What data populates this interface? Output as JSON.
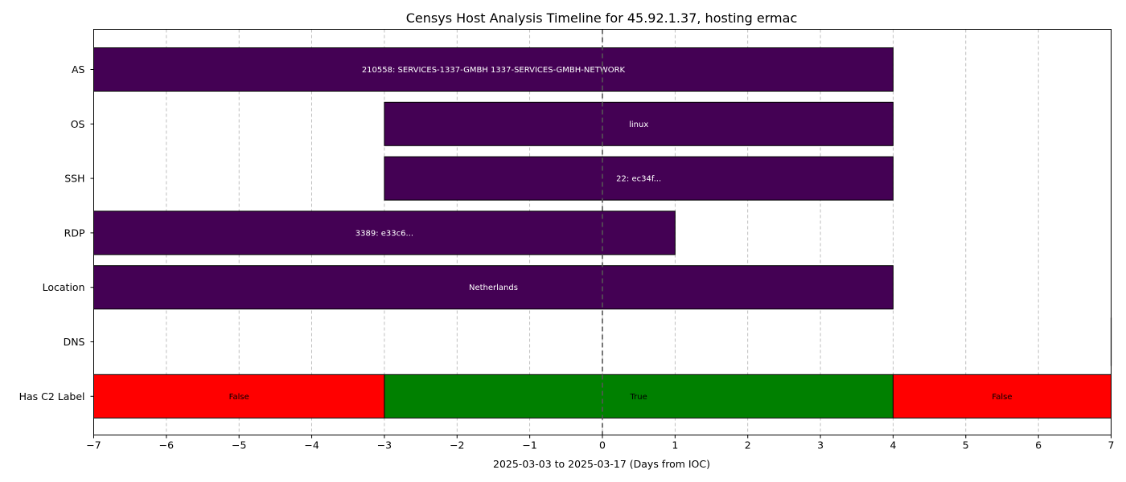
{
  "chart_data": {
    "type": "timeline",
    "title": "Censys Host Analysis Timeline for 45.92.1.37, hosting ermac",
    "xlabel": "2025-03-03 to 2025-03-17 (Days from IOC)",
    "ylabel": "",
    "xlim": [
      -7,
      7
    ],
    "xticks": [
      -7,
      -6,
      -5,
      -4,
      -3,
      -2,
      -1,
      0,
      1,
      2,
      3,
      4,
      5,
      6,
      7
    ],
    "grid": "vertical dashed",
    "reference_line": {
      "x": 0,
      "style": "dashed"
    },
    "categories": [
      "AS",
      "OS",
      "SSH",
      "RDP",
      "Location",
      "DNS",
      "Has C2 Label"
    ],
    "segments": [
      {
        "category": "AS",
        "start": -7,
        "end": 4,
        "label": "210558: SERVICES-1337-GMBH 1337-SERVICES-GMBH-NETWORK",
        "color": "#440154",
        "text_color": "#ffffff"
      },
      {
        "category": "OS",
        "start": -3,
        "end": 4,
        "label": "linux",
        "color": "#440154",
        "text_color": "#ffffff"
      },
      {
        "category": "SSH",
        "start": -3,
        "end": 4,
        "label": "22: ec34f...",
        "color": "#440154",
        "text_color": "#ffffff"
      },
      {
        "category": "RDP",
        "start": -7,
        "end": 1,
        "label": "3389: e33c6...",
        "color": "#440154",
        "text_color": "#ffffff"
      },
      {
        "category": "Location",
        "start": -7,
        "end": 4,
        "label": "Netherlands",
        "color": "#440154",
        "text_color": "#ffffff"
      },
      {
        "category": "Has C2 Label",
        "start": -7,
        "end": -3,
        "label": "False",
        "color": "#ff0000",
        "text_color": "#000000"
      },
      {
        "category": "Has C2 Label",
        "start": -3,
        "end": 4,
        "label": "True",
        "color": "#008000",
        "text_color": "#000000"
      },
      {
        "category": "Has C2 Label",
        "start": 4,
        "end": 7,
        "label": "False",
        "color": "#ff0000",
        "text_color": "#000000"
      }
    ]
  }
}
